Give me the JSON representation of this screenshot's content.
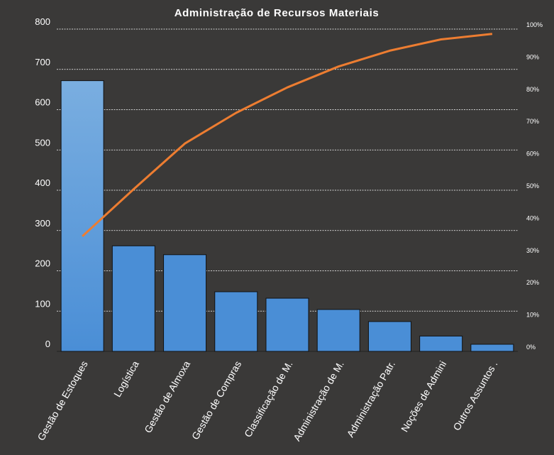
{
  "chart_data": {
    "type": "bar",
    "title": "Administração  de Recursos  Materiais",
    "categories": [
      "Gestão de Estoques",
      "Logística",
      "Gestão de Almoxa",
      "Gestão de Compras",
      "Classificação de M.",
      "Administração de M.",
      "Administração Patr.",
      "Noções de Admini",
      "Outros Assuntos ."
    ],
    "series": [
      {
        "kind": "bar",
        "values": [
          672,
          262,
          240,
          148,
          132,
          104,
          74,
          38,
          0
        ]
      },
      {
        "kind": "line",
        "axis": "secondary",
        "values": [
          35.7,
          50.3,
          64.5,
          74.0,
          81.9,
          88.4,
          93.3,
          96.8,
          98.5
        ]
      }
    ],
    "ylim": [
      0,
      800
    ],
    "yticks": [
      0,
      100,
      200,
      300,
      400,
      500,
      600,
      700,
      800
    ],
    "y2lim": [
      0,
      100
    ],
    "y2ticks": [
      "0%",
      "10%",
      "20%",
      "30%",
      "40%",
      "50%",
      "60%",
      "70%",
      "80%",
      "90%",
      "100%"
    ],
    "grid": true,
    "legend": "none",
    "colors": {
      "background": "#3a3938",
      "bar": "#4a8ed6",
      "bar_top": "#7aaee0",
      "line": "#ed7d31",
      "grid": "#ffffff",
      "text": "#ffffff"
    }
  }
}
